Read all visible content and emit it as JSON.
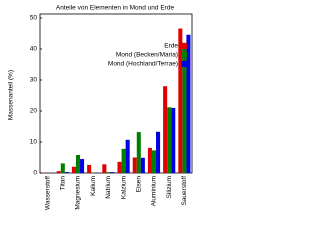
{
  "chart_data": {
    "type": "bar",
    "title": "Anteile von Elementen in Mond und Erde",
    "y_label": "Massenanteil (%)",
    "categories": [
      "Wasserstoff",
      "Titan",
      "Magnesium",
      "Kalium",
      "Natrium",
      "Kalzium",
      "Eisen",
      "Aluminium",
      "Silizium",
      "Sauerstoff"
    ],
    "series": [
      {
        "name": "Erde",
        "color": "#e00000",
        "values": [
          0.1,
          0.6,
          2.0,
          2.6,
          2.8,
          3.6,
          5.0,
          8.1,
          28.0,
          46.6
        ]
      },
      {
        "name": "Mond (Becken/Maria)",
        "color": "#008000",
        "values": [
          0,
          3.1,
          5.8,
          0.1,
          0.3,
          7.8,
          13.2,
          7.3,
          21.2,
          42.0
        ]
      },
      {
        "name": "Mond (Hochland/Terrae)",
        "color": "#0000e0",
        "values": [
          0,
          0.3,
          4.5,
          0.1,
          0.3,
          10.7,
          4.9,
          13.3,
          21.0,
          44.6
        ]
      }
    ],
    "ylim": [
      0,
      50
    ],
    "yticks": [
      0,
      10,
      20,
      30,
      40,
      50
    ],
    "legend": "top-right"
  }
}
